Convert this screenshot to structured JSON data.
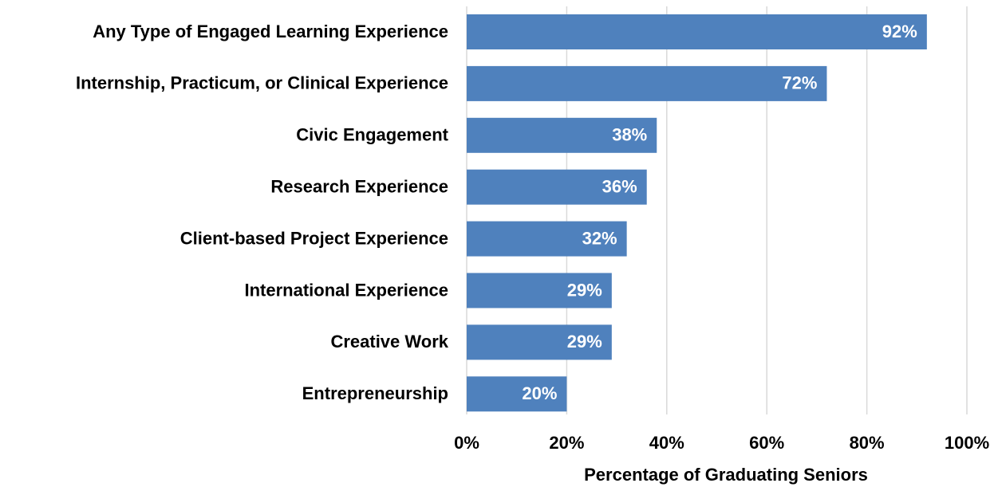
{
  "chart_data": {
    "type": "barh",
    "categories": [
      "Any Type of Engaged Learning Experience",
      "Internship, Practicum, or Clinical Experience",
      "Civic Engagement",
      "Research Experience",
      "Client-based Project Experience",
      "International Experience",
      "Creative Work",
      "Entrepreneurship"
    ],
    "values": [
      92,
      72,
      38,
      36,
      32,
      29,
      29,
      20
    ],
    "value_labels": [
      "92%",
      "72%",
      "38%",
      "36%",
      "32%",
      "29%",
      "29%",
      "20%"
    ],
    "color": "#4f81bd",
    "xlabel": "Percentage of Graduating Seniors",
    "xlim": [
      0,
      100
    ],
    "xticks": [
      {
        "value": 0,
        "label": "0%"
      },
      {
        "value": 20,
        "label": "20%"
      },
      {
        "value": 40,
        "label": "40%"
      },
      {
        "value": 60,
        "label": "60%"
      },
      {
        "value": 80,
        "label": "80%"
      },
      {
        "value": 100,
        "label": "100%"
      }
    ],
    "grid": true
  }
}
